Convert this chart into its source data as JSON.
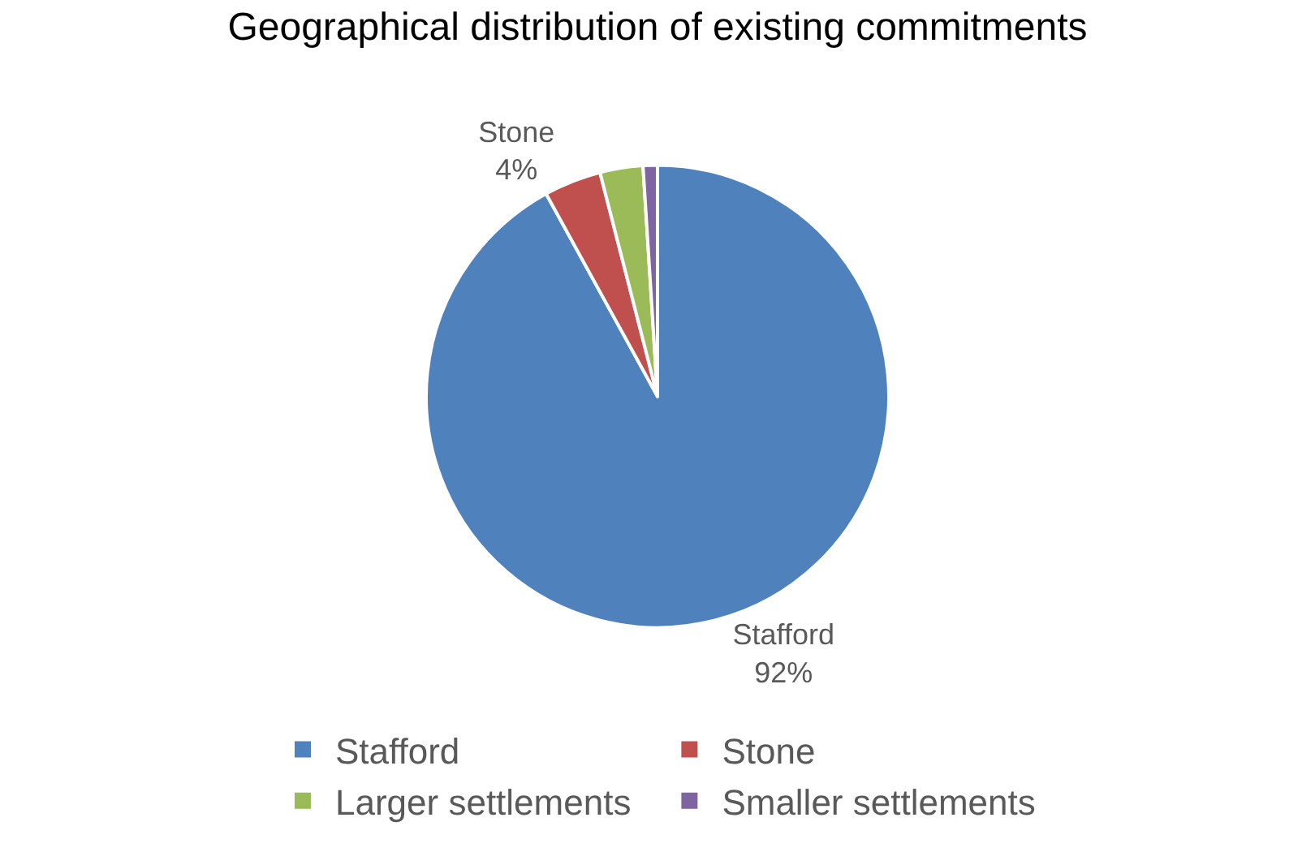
{
  "chart_data": {
    "type": "pie",
    "title": "Geographical distribution of existing commitments",
    "categories": [
      "Stafford",
      "Stone",
      "Larger settlements",
      "Smaller settlements"
    ],
    "values": [
      92,
      4,
      3,
      1
    ],
    "colors": [
      "#4f81bd",
      "#c0504d",
      "#9bbb59",
      "#8064a2"
    ],
    "value_labels": [
      "92%",
      "4%",
      null,
      null
    ],
    "legend": "bottom"
  }
}
